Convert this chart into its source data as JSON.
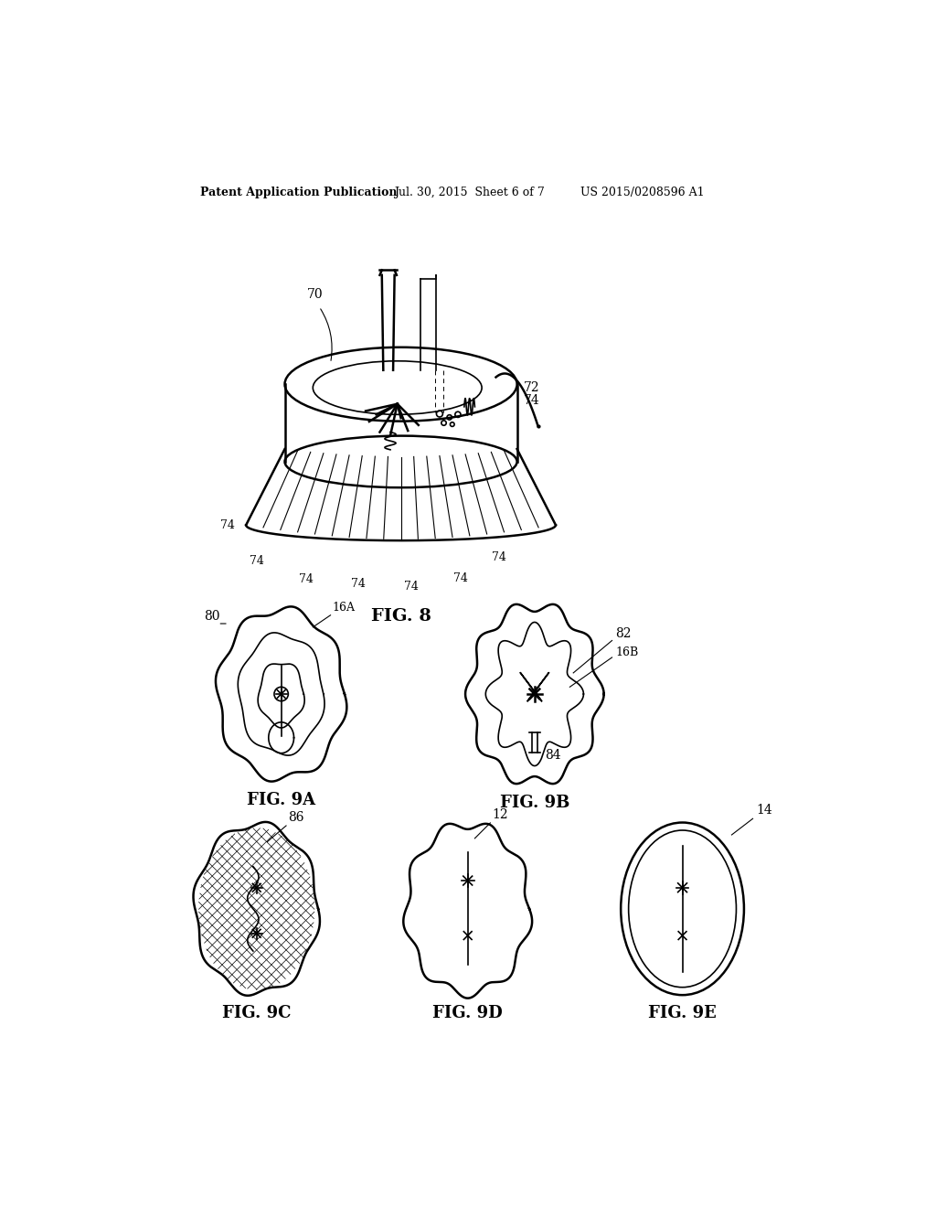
{
  "bg_color": "#ffffff",
  "line_color": "#000000",
  "header_left": "Patent Application Publication",
  "header_mid": "Jul. 30, 2015  Sheet 6 of 7",
  "header_right": "US 2015/0208596 A1",
  "fig8_label": "FIG. 8",
  "fig9a_label": "FIG. 9A",
  "fig9b_label": "FIG. 9B",
  "fig9c_label": "FIG. 9C",
  "fig9d_label": "FIG. 9D",
  "fig9e_label": "FIG. 9E"
}
